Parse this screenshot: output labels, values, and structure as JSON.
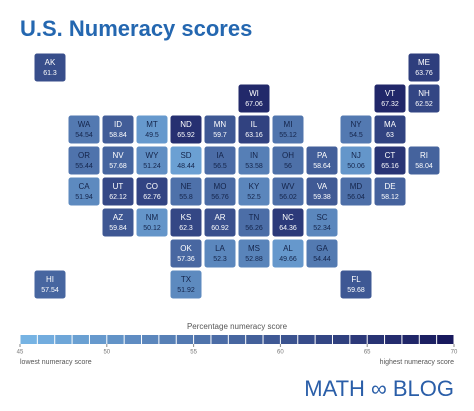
{
  "title": "U.S. Numeracy scores",
  "states": [
    {
      "abbr": "AK",
      "value": 61.3
    },
    {
      "abbr": "ME",
      "value": 63.76
    },
    {
      "abbr": "WI",
      "value": 67.06
    },
    {
      "abbr": "VT",
      "value": 67.32
    },
    {
      "abbr": "NH",
      "value": 62.52
    },
    {
      "abbr": "WA",
      "value": 54.54
    },
    {
      "abbr": "ID",
      "value": 58.84
    },
    {
      "abbr": "MT",
      "value": 49.5
    },
    {
      "abbr": "ND",
      "value": 65.92
    },
    {
      "abbr": "MN",
      "value": 59.7
    },
    {
      "abbr": "IL",
      "value": 63.16
    },
    {
      "abbr": "MI",
      "value": 55.12
    },
    {
      "abbr": "NY",
      "value": 54.5
    },
    {
      "abbr": "MA",
      "value": 63
    },
    {
      "abbr": "OR",
      "value": 55.44
    },
    {
      "abbr": "NV",
      "value": 57.68
    },
    {
      "abbr": "WY",
      "value": 51.24
    },
    {
      "abbr": "SD",
      "value": 48.44
    },
    {
      "abbr": "IA",
      "value": 56.5
    },
    {
      "abbr": "IN",
      "value": 53.58
    },
    {
      "abbr": "OH",
      "value": 56
    },
    {
      "abbr": "PA",
      "value": 58.64
    },
    {
      "abbr": "NJ",
      "value": 50.06
    },
    {
      "abbr": "CT",
      "value": 65.16
    },
    {
      "abbr": "RI",
      "value": 58.04
    },
    {
      "abbr": "CA",
      "value": 51.94
    },
    {
      "abbr": "UT",
      "value": 62.12
    },
    {
      "abbr": "CO",
      "value": 62.76
    },
    {
      "abbr": "NE",
      "value": 55.8
    },
    {
      "abbr": "MO",
      "value": 56.76
    },
    {
      "abbr": "KY",
      "value": 52.5
    },
    {
      "abbr": "WV",
      "value": 56.02
    },
    {
      "abbr": "VA",
      "value": 59.38
    },
    {
      "abbr": "MD",
      "value": 56.04
    },
    {
      "abbr": "DE",
      "value": 58.12
    },
    {
      "abbr": "AZ",
      "value": 59.84
    },
    {
      "abbr": "NM",
      "value": 50.12
    },
    {
      "abbr": "KS",
      "value": 62.3
    },
    {
      "abbr": "AR",
      "value": 60.92
    },
    {
      "abbr": "TN",
      "value": 56.26
    },
    {
      "abbr": "NC",
      "value": 64.36
    },
    {
      "abbr": "SC",
      "value": 52.34
    },
    {
      "abbr": "OK",
      "value": 57.36
    },
    {
      "abbr": "LA",
      "value": 52.3
    },
    {
      "abbr": "MS",
      "value": 52.88
    },
    {
      "abbr": "AL",
      "value": 49.66
    },
    {
      "abbr": "GA",
      "value": 54.44
    },
    {
      "abbr": "HI",
      "value": 57.54
    },
    {
      "abbr": "TX",
      "value": 51.92
    },
    {
      "abbr": "FL",
      "value": 59.68
    }
  ],
  "legend": {
    "title": "Percentage numeracy score",
    "ticks": [
      45,
      50,
      55,
      60,
      65,
      70
    ],
    "low_label": "lowest numeracy score",
    "high_label": "highest numeracy score"
  },
  "brand": "MATH ∞ BLOG"
}
